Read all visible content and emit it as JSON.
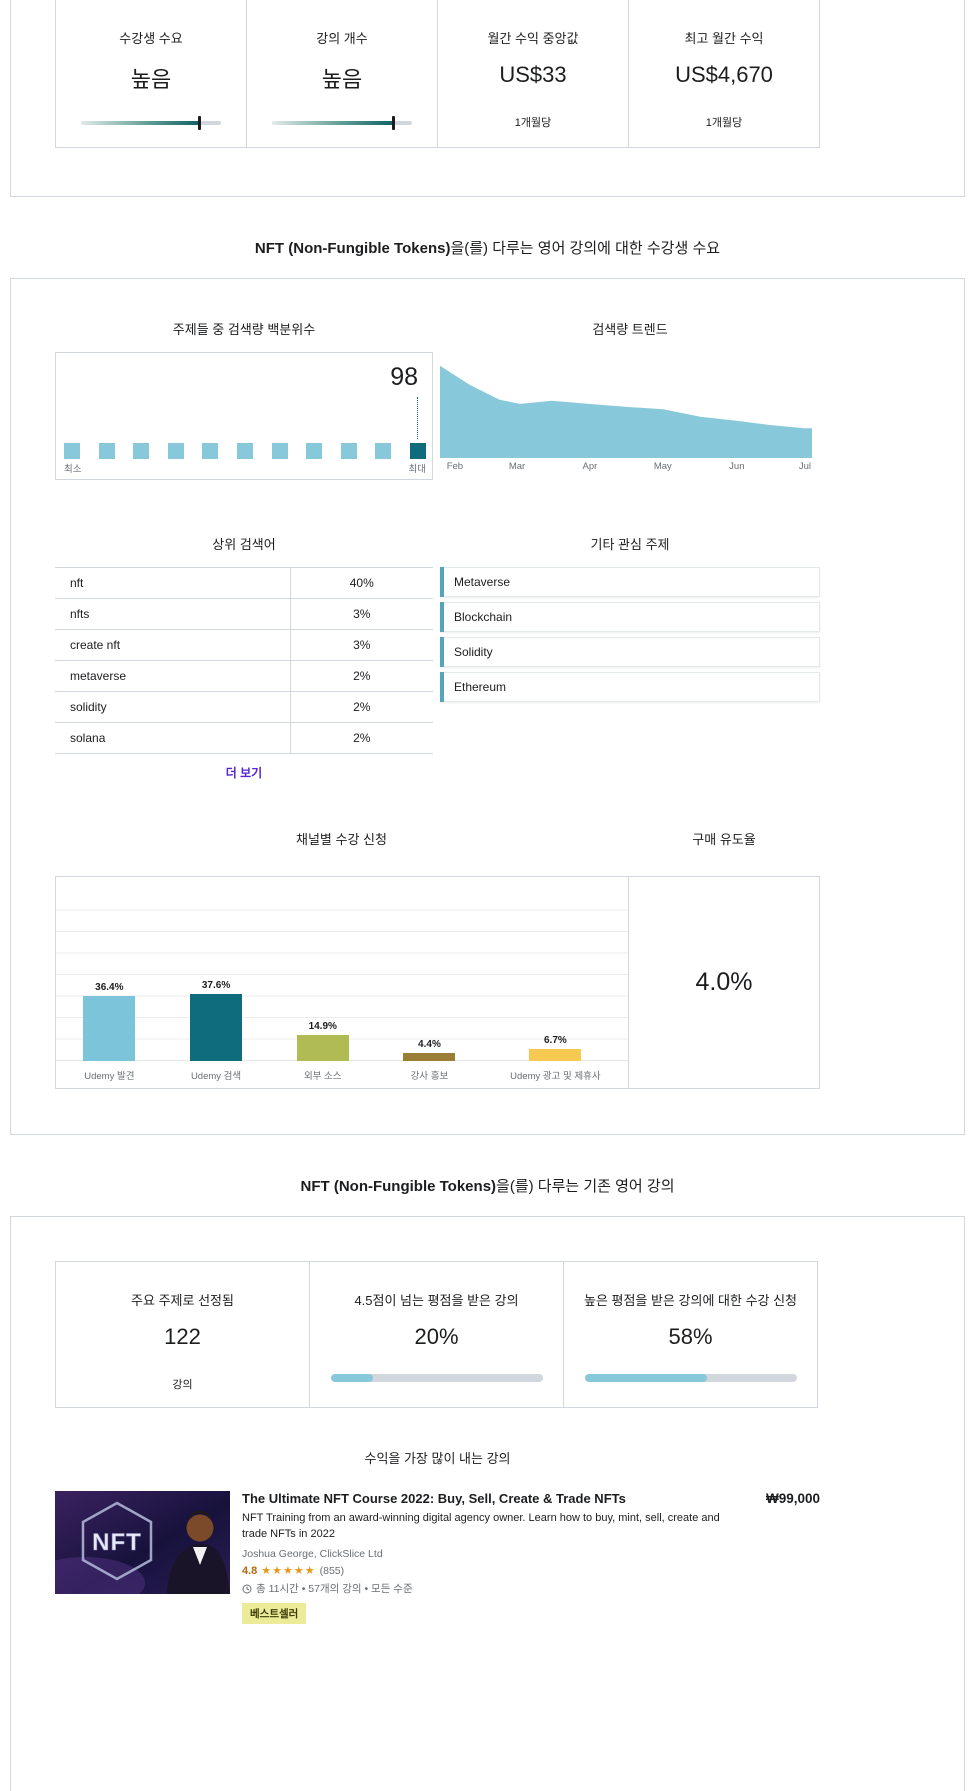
{
  "colors": {
    "light_blue": "#87c9da",
    "dark_teal": "#0e6c7c",
    "border": "#d1d7dc",
    "link_purple": "#5624d0",
    "rating_brown": "#b4690e",
    "star_orange": "#e59819",
    "badge_bg": "#eceb98",
    "topic_accent": "#55a4ba"
  },
  "top_stats": {
    "boxes": [
      {
        "title": "수강생 수요",
        "value": "높음",
        "slider_percent": 85
      },
      {
        "title": "강의 개수",
        "value": "높음",
        "slider_percent": 87
      },
      {
        "title": "월간 수익 중앙값",
        "value": "US$33",
        "subtitle": "1개월당"
      },
      {
        "title": "최고 월간 수익",
        "value": "US$4,670",
        "subtitle": "1개월당"
      }
    ]
  },
  "demand_section": {
    "heading_bold": "NFT (Non-Fungible Tokens)",
    "heading_rest": "을(를) 다루는 영어 강의에 대한 수강생 수요",
    "percentile": {
      "title": "주제들 중 검색량 백분위수",
      "value": "98",
      "min_label": "최소",
      "max_label": "최대",
      "squares_total": 11
    },
    "trend": {
      "title": "검색량 트렌드",
      "type": "area",
      "months": [
        "Feb",
        "Mar",
        "Apr",
        "May",
        "Jun",
        "Jul"
      ],
      "month_positions": [
        0.04,
        0.207,
        0.403,
        0.599,
        0.798,
        0.981
      ],
      "points": [
        [
          0,
          0.87
        ],
        [
          0.08,
          0.69
        ],
        [
          0.16,
          0.55
        ],
        [
          0.215,
          0.51
        ],
        [
          0.3,
          0.54
        ],
        [
          0.4,
          0.51
        ],
        [
          0.51,
          0.48
        ],
        [
          0.6,
          0.46
        ],
        [
          0.7,
          0.39
        ],
        [
          0.8,
          0.35
        ],
        [
          0.89,
          0.31
        ],
        [
          0.98,
          0.28
        ],
        [
          1,
          0.28
        ]
      ]
    },
    "search_terms": {
      "title": "상위 검색어",
      "rows": [
        [
          "nft",
          "40%"
        ],
        [
          "nfts",
          "3%"
        ],
        [
          "create nft",
          "3%"
        ],
        [
          "metaverse",
          "2%"
        ],
        [
          "solidity",
          "2%"
        ],
        [
          "solana",
          "2%"
        ]
      ],
      "more_label": "더 보기"
    },
    "topics": {
      "title": "기타 관심 주제",
      "items": [
        "Metaverse",
        "Blockchain",
        "Solidity",
        "Ethereum"
      ]
    },
    "channels": {
      "title": "채널별 수강 신청",
      "type": "bar",
      "bars": [
        {
          "label": "Udemy 발견",
          "value": 36.4,
          "display": "36.4%",
          "color": "#7cc4d9"
        },
        {
          "label": "Udemy 검색",
          "value": 37.6,
          "display": "37.6%",
          "color": "#0e6c7c"
        },
        {
          "label": "외부 소스",
          "value": 14.9,
          "display": "14.9%",
          "color": "#b0bc53"
        },
        {
          "label": "강사 홍보",
          "value": 4.4,
          "display": "4.4%",
          "color": "#9b7e35"
        },
        {
          "label": "Udemy 광고 및 제휴사",
          "value": 6.7,
          "display": "6.7%",
          "color": "#f6ca51"
        }
      ]
    },
    "conversion": {
      "title": "구매 유도율",
      "value": "4.0%"
    }
  },
  "existing_section": {
    "heading_bold": "NFT (Non-Fungible Tokens)",
    "heading_rest": "을(를) 다루는 기존 영어 강의",
    "stats": [
      {
        "title": "주요 주제로 선정됨",
        "value": "122",
        "subtitle": "강의"
      },
      {
        "title": "4.5점이 넘는 평점을 받은 강의",
        "value": "20%",
        "progress": 20
      },
      {
        "title": "높은 평점을 받은 강의에 대한 수강 신청",
        "value": "58%",
        "progress": 58
      }
    ],
    "top_course_heading": "수익을 가장 많이 내는 강의",
    "course": {
      "title": "The Ultimate NFT Course 2022: Buy, Sell, Create & Trade NFTs",
      "description": "NFT Training from an award-winning digital agency owner. Learn how to buy, mint, sell, create and trade NFTs in 2022",
      "instructor": "Joshua George, ClickSlice Ltd",
      "rating": "4.8",
      "stars": "★★★★★",
      "reviews": "(855)",
      "meta": "총 11시간 • 57개의 강의 • 모든 수준",
      "badge": "베스트셀러",
      "price": "₩99,000",
      "thumb_text": "NFT"
    }
  }
}
